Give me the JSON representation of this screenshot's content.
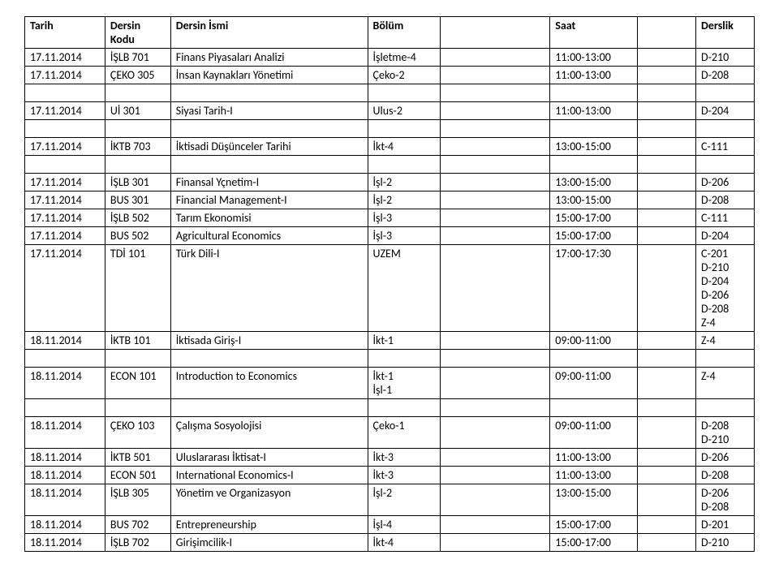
{
  "headers": {
    "tarih": "Tarih",
    "kodu": "Dersin Kodu",
    "ismi": "Dersin İsmi",
    "bolum": "Bölüm",
    "saat": "Saat",
    "derslik": "Derslik"
  },
  "rows": [
    {
      "tarih": "17.11.2014",
      "kodu": "İŞLB 701",
      "ismi": "Finans Piyasaları Analizi",
      "bolum": "İşletme-4",
      "saat": "11:00-13:00",
      "derslik": "D-210"
    },
    {
      "tarih": "17.11.2014",
      "kodu": "ÇEKO 305",
      "ismi": "İnsan Kaynakları Yönetimi",
      "bolum": "Çeko-2",
      "saat": "11:00-13:00",
      "derslik": "D-208"
    },
    {
      "tarih": "17.11.2014",
      "kodu": "Uİ 301",
      "ismi": "Siyasi Tarih-I",
      "bolum": "Ulus-2",
      "saat": "11:00-13:00",
      "derslik": "D-204"
    },
    {
      "tarih": "17.11.2014",
      "kodu": "İKTB 703",
      "ismi": "İktisadi Düşünceler Tarihi",
      "bolum": "İkt-4",
      "saat": "13:00-15:00",
      "derslik": "C-111"
    },
    {
      "tarih": "17.11.2014",
      "kodu": "İŞLB 301",
      "ismi": "Finansal Yçnetim-I",
      "bolum": "İşl-2",
      "saat": "13:00-15:00",
      "derslik": "D-206"
    },
    {
      "tarih": "17.11.2014",
      "kodu": "BUS 301",
      "ismi": "Financial Management-I",
      "bolum": "İşl-2",
      "saat": "13:00-15:00",
      "derslik": "D-208"
    },
    {
      "tarih": "17.11.2014",
      "kodu": "İŞLB 502",
      "ismi": "Tarım Ekonomisi",
      "bolum": "İşl-3",
      "saat": "15:00-17:00",
      "derslik": "C-111"
    },
    {
      "tarih": "17.11.2014",
      "kodu": "BUS 502",
      "ismi": "Agricultural Economics",
      "bolum": "İşl-3",
      "saat": "15:00-17:00",
      "derslik": "D-204"
    },
    {
      "tarih": "17.11.2014",
      "kodu": "TDİ 101",
      "ismi": "Türk Dili-I",
      "bolum": "UZEM",
      "saat": "17:00-17:30",
      "derslik": "C-201\nD-210\nD-204\nD-206\nD-208\nZ-4"
    },
    {
      "tarih": "18.11.2014",
      "kodu": "İKTB 101",
      "ismi": "İktisada Giriş-I",
      "bolum": "İkt-1",
      "saat": "09:00-11:00",
      "derslik": "Z-4"
    },
    {
      "tarih": "18.11.2014",
      "kodu": "ECON 101",
      "ismi": "Introduction to Economics",
      "bolum": "İkt-1\nİşl-1",
      "saat": "09:00-11:00",
      "derslik": "Z-4"
    },
    {
      "tarih": "18.11.2014",
      "kodu": "ÇEKO 103",
      "ismi": "Çalışma Sosyolojisi",
      "bolum": "Çeko-1",
      "saat": "09:00-11:00",
      "derslik": "D-208\nD-210"
    },
    {
      "tarih": "18.11.2014",
      "kodu": "İKTB 501",
      "ismi": "Uluslararası İktisat-I",
      "bolum": "İkt-3",
      "saat": "11:00-13:00",
      "derslik": "D-206"
    },
    {
      "tarih": "18.11.2014",
      "kodu": "ECON 501",
      "ismi": "International Economics-I",
      "bolum": "İkt-3",
      "saat": "11:00-13:00",
      "derslik": "D-208"
    },
    {
      "tarih": "18.11.2014",
      "kodu": "İŞLB 305",
      "ismi": "Yönetim ve Organizasyon",
      "bolum": "İşl-2",
      "saat": "13:00-15:00",
      "derslik": "D-206\nD-208"
    },
    {
      "tarih": "18.11.2014",
      "kodu": "BUS 702",
      "ismi": "Entrepreneurship",
      "bolum": "İşl-4",
      "saat": "15:00-17:00",
      "derslik": "D-201"
    },
    {
      "tarih": "18.11.2014",
      "kodu": "İŞLB 702",
      "ismi": "Girişimcilik-I",
      "bolum": "İkt-4",
      "saat": "15:00-17:00",
      "derslik": "D-210"
    }
  ],
  "spacer_after": [
    1,
    2,
    3,
    9,
    10
  ]
}
